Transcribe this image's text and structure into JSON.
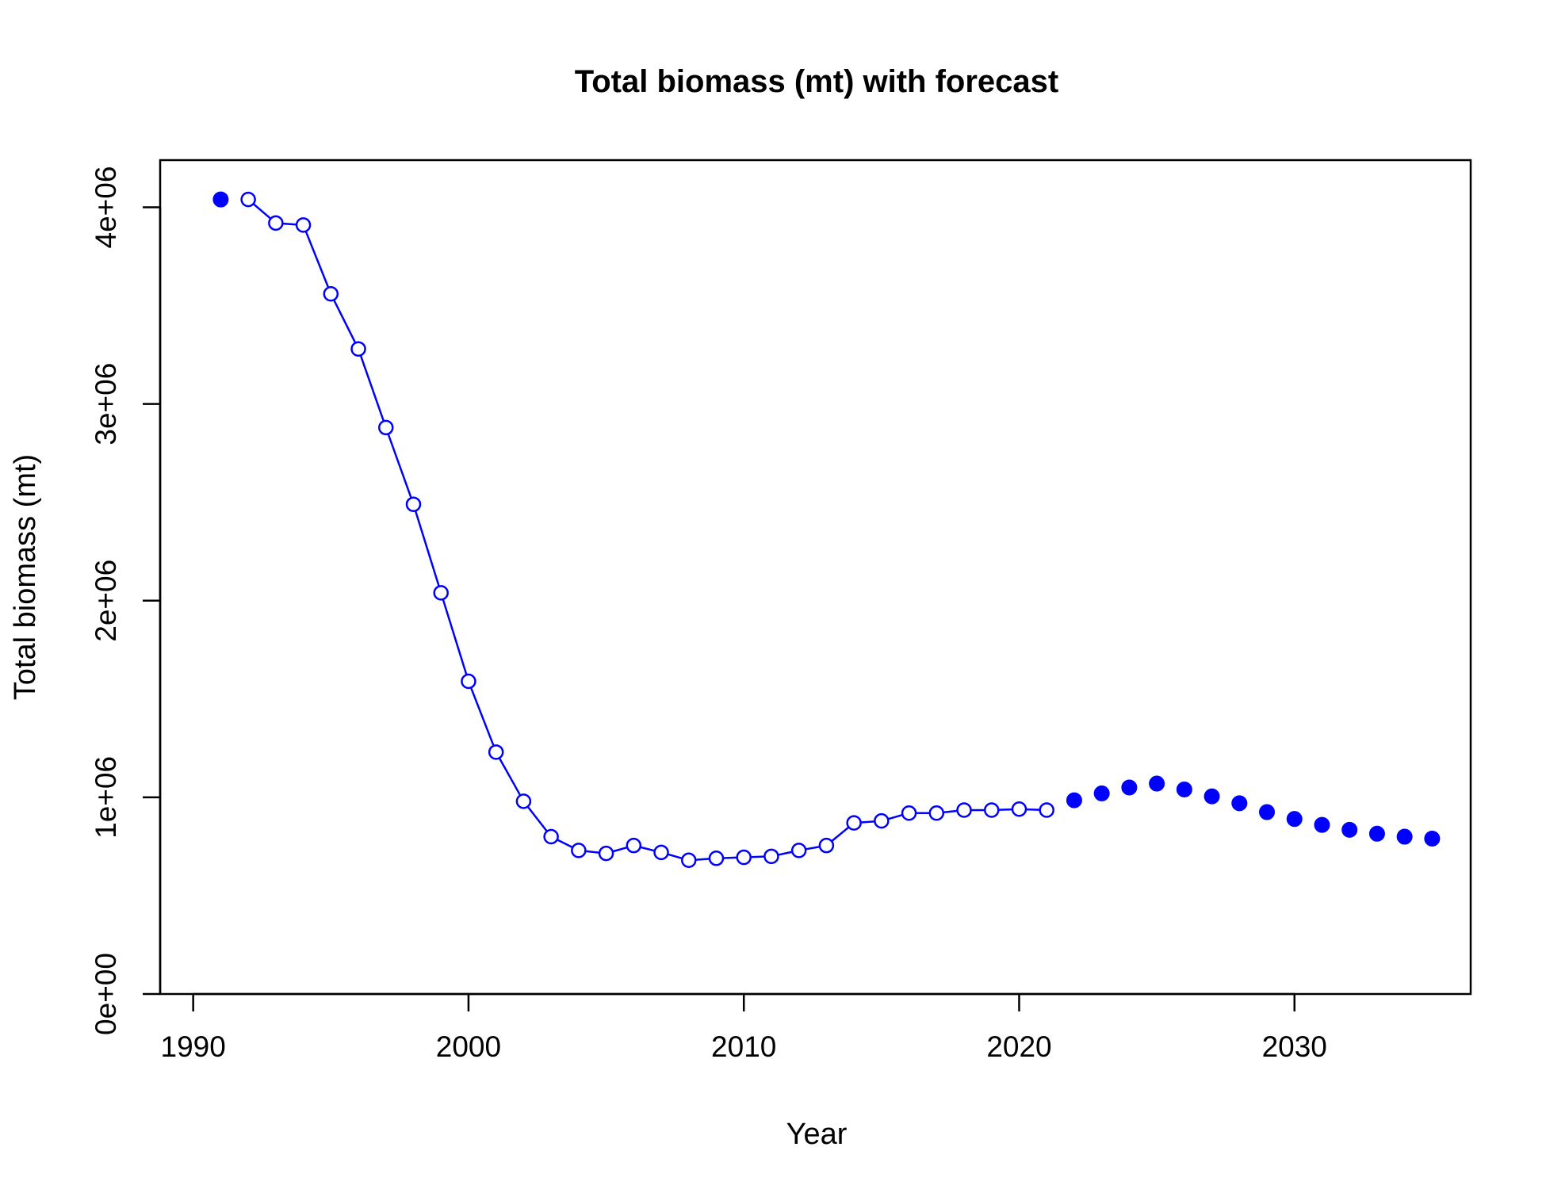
{
  "chart_data": {
    "type": "line",
    "title": "Total biomass (mt) with forecast",
    "xlabel": "Year",
    "ylabel": "Total biomass (mt)",
    "xlim": [
      1988.8,
      2036.4
    ],
    "ylim": [
      0,
      4240000
    ],
    "x_ticks": [
      1990,
      2000,
      2010,
      2020,
      2030
    ],
    "x_tick_labels": [
      "1990",
      "2000",
      "2010",
      "2020",
      "2030"
    ],
    "y_ticks": [
      0,
      1000000,
      2000000,
      3000000,
      4000000
    ],
    "y_tick_labels": [
      "0e+00",
      "1e+06",
      "2e+06",
      "3e+06",
      "4e+06"
    ],
    "grid": false,
    "colors": {
      "series": "#0000ff",
      "axes": "#000000"
    },
    "series": [
      {
        "style": "filled-point",
        "x": [
          1991
        ],
        "values": [
          4040000
        ]
      },
      {
        "style": "open-point-with-line",
        "x": [
          1992,
          1993,
          1994,
          1995,
          1996,
          1997,
          1998,
          1999,
          2000,
          2001,
          2002,
          2003,
          2004,
          2005,
          2006,
          2007,
          2008,
          2009,
          2010,
          2011,
          2012,
          2013,
          2014,
          2015,
          2016,
          2017,
          2018,
          2019,
          2020,
          2021
        ],
        "values": [
          4040000,
          3920000,
          3910000,
          3560000,
          3280000,
          2880000,
          2490000,
          2040000,
          1590000,
          1230000,
          980000,
          800000,
          730000,
          715000,
          755000,
          720000,
          680000,
          690000,
          695000,
          700000,
          730000,
          755000,
          870000,
          880000,
          920000,
          920000,
          935000,
          935000,
          940000,
          935000
        ]
      },
      {
        "style": "filled-point",
        "x": [
          2022,
          2023,
          2024,
          2025,
          2026,
          2027,
          2028,
          2029,
          2030,
          2031,
          2032,
          2033,
          2034,
          2035
        ],
        "values": [
          985000,
          1020000,
          1050000,
          1070000,
          1040000,
          1005000,
          970000,
          925000,
          890000,
          860000,
          835000,
          815000,
          800000,
          790000
        ]
      }
    ]
  }
}
